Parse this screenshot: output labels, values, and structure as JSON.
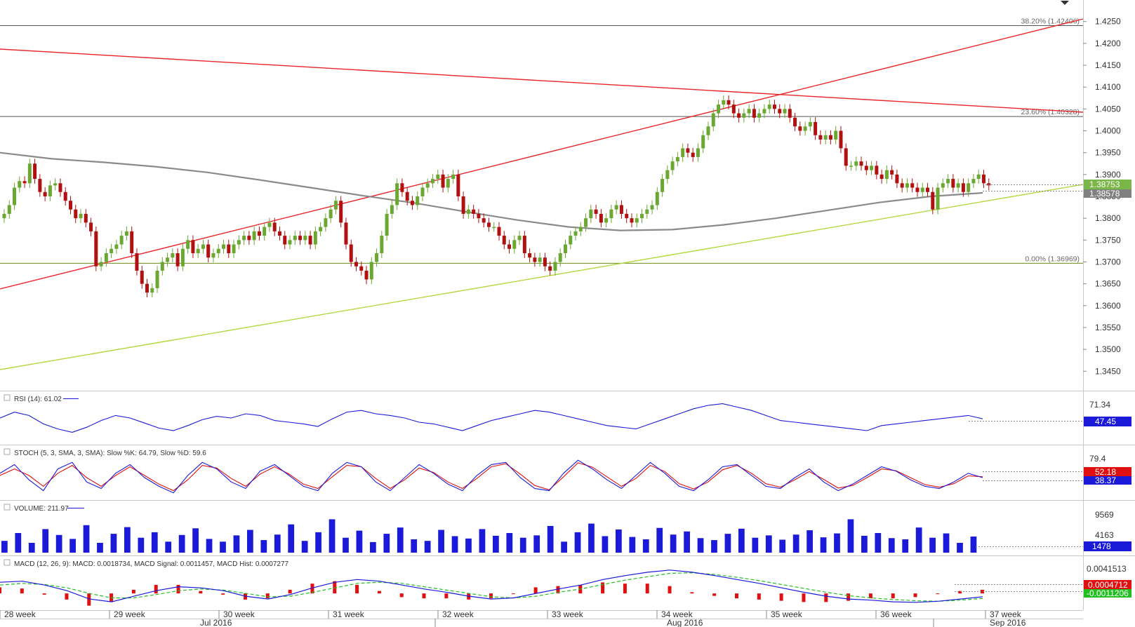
{
  "chart_data": {
    "type": "candlestick",
    "instrument_scale": {
      "ylim": [
        1.342,
        1.428
      ]
    },
    "price_axis": {
      "ticks": [
        "1.4250",
        "1.4200",
        "1.4150",
        "1.4100",
        "1.4050",
        "1.4000",
        "1.3950",
        "1.3900",
        "1.3850",
        "1.3800",
        "1.3750",
        "1.3700",
        "1.3650",
        "1.3600",
        "1.3550",
        "1.3500",
        "1.3450"
      ],
      "last_price_label": "1.38753",
      "ma_label": "1.38578",
      "last_price": 1.38753,
      "ma_value": 1.38578
    },
    "fib_levels": [
      {
        "label": "38.20% (1.42406)",
        "value": 1.42406
      },
      {
        "label": "23.60% (1.40328)",
        "value": 1.40328
      },
      {
        "label": "0.00% (1.36969)",
        "value": 1.36969
      }
    ],
    "time_axis": {
      "week_labels": [
        "28 week",
        "29 week",
        "30 week",
        "31 week",
        "32 week",
        "33 week",
        "34 week",
        "35 week",
        "36 week",
        "37 week"
      ],
      "month_labels": [
        "Jul 2016",
        "Aug 2016",
        "Sep 2016"
      ]
    },
    "candles_close": [
      1.381,
      1.383,
      1.387,
      1.3885,
      1.388,
      1.3925,
      1.389,
      1.386,
      1.385,
      1.3875,
      1.388,
      1.386,
      1.384,
      1.382,
      1.38,
      1.381,
      1.379,
      1.377,
      1.369,
      1.37,
      1.372,
      1.373,
      1.374,
      1.376,
      1.377,
      1.372,
      1.368,
      1.365,
      1.363,
      1.364,
      1.368,
      1.37,
      1.371,
      1.372,
      1.369,
      1.373,
      1.375,
      1.372,
      1.373,
      1.374,
      1.371,
      1.372,
      1.373,
      1.374,
      1.372,
      1.374,
      1.375,
      1.376,
      1.375,
      1.377,
      1.376,
      1.378,
      1.379,
      1.377,
      1.376,
      1.374,
      1.375,
      1.376,
      1.375,
      1.376,
      1.374,
      1.377,
      1.378,
      1.38,
      1.382,
      1.384,
      1.379,
      1.374,
      1.37,
      1.369,
      1.368,
      1.366,
      1.37,
      1.372,
      1.376,
      1.381,
      1.383,
      1.388,
      1.386,
      1.384,
      1.383,
      1.385,
      1.387,
      1.388,
      1.389,
      1.39,
      1.387,
      1.389,
      1.39,
      1.385,
      1.381,
      1.382,
      1.381,
      1.38,
      1.379,
      1.378,
      1.378,
      1.376,
      1.374,
      1.373,
      1.375,
      1.376,
      1.372,
      1.371,
      1.37,
      1.371,
      1.369,
      1.368,
      1.37,
      1.372,
      1.374,
      1.376,
      1.377,
      1.378,
      1.38,
      1.382,
      1.381,
      1.379,
      1.38,
      1.382,
      1.383,
      1.381,
      1.38,
      1.379,
      1.38,
      1.381,
      1.382,
      1.383,
      1.386,
      1.389,
      1.391,
      1.393,
      1.394,
      1.396,
      1.395,
      1.394,
      1.396,
      1.399,
      1.401,
      1.404,
      1.406,
      1.407,
      1.406,
      1.404,
      1.403,
      1.404,
      1.405,
      1.403,
      1.404,
      1.405,
      1.406,
      1.405,
      1.404,
      1.405,
      1.403,
      1.401,
      1.4,
      1.401,
      1.402,
      1.399,
      1.398,
      1.399,
      1.398,
      1.4,
      1.396,
      1.392,
      1.392,
      1.393,
      1.392,
      1.391,
      1.392,
      1.39,
      1.389,
      1.391,
      1.39,
      1.388,
      1.387,
      1.388,
      1.387,
      1.386,
      1.387,
      1.386,
      1.382,
      1.387,
      1.388,
      1.389,
      1.387,
      1.388,
      1.386,
      1.388,
      1.389,
      1.39,
      1.388,
      1.3875
    ],
    "ma200_y": [
      1.395,
      1.3936,
      1.3928,
      1.3918,
      1.3905,
      1.3888,
      1.387,
      1.3852,
      1.3835,
      1.3815,
      1.3796,
      1.378,
      1.3772,
      1.3774,
      1.3785,
      1.38,
      1.3818,
      1.3836,
      1.385,
      1.3858
    ],
    "rsi": {
      "label": "RSI (14): 61.02",
      "axis_labels": [
        "71.34"
      ],
      "current_label": "47.45",
      "values": [
        55,
        62,
        58,
        48,
        42,
        38,
        44,
        52,
        58,
        55,
        49,
        43,
        40,
        46,
        53,
        57,
        55,
        60,
        58,
        52,
        50,
        48,
        45,
        54,
        62,
        64,
        60,
        58,
        55,
        50,
        48,
        44,
        40,
        46,
        52,
        56,
        60,
        64,
        62,
        58,
        54,
        50,
        46,
        44,
        42,
        48,
        54,
        60,
        66,
        70,
        72,
        68,
        64,
        58,
        52,
        50,
        48,
        46,
        44,
        42,
        40,
        46,
        48,
        50,
        52,
        54,
        56,
        58,
        54
      ]
    },
    "stoch": {
      "label": "STOCH (5, 3, SMA, 3, SMA): Slow %K: 64.79, Slow %D: 59.6",
      "axis_labels": [
        "79.4"
      ],
      "k_label": "52.18",
      "d_label": "38.37",
      "k_values": [
        60,
        80,
        45,
        20,
        70,
        85,
        40,
        25,
        60,
        80,
        50,
        30,
        15,
        55,
        85,
        70,
        40,
        25,
        65,
        80,
        55,
        30,
        20,
        60,
        85,
        75,
        40,
        20,
        50,
        80,
        60,
        35,
        20,
        55,
        80,
        85,
        50,
        25,
        20,
        60,
        90,
        70,
        45,
        25,
        55,
        85,
        60,
        30,
        20,
        45,
        75,
        80,
        55,
        30,
        25,
        50,
        70,
        40,
        20,
        35,
        55,
        75,
        65,
        45,
        30,
        25,
        40,
        60,
        50
      ],
      "d_values": [
        55,
        70,
        55,
        30,
        60,
        78,
        50,
        30,
        55,
        75,
        55,
        35,
        20,
        45,
        78,
        72,
        48,
        30,
        58,
        75,
        58,
        35,
        25,
        52,
        78,
        75,
        48,
        25,
        45,
        72,
        62,
        40,
        25,
        48,
        75,
        82,
        58,
        32,
        22,
        52,
        84,
        74,
        52,
        30,
        48,
        78,
        64,
        36,
        24,
        40,
        68,
        78,
        60,
        36,
        28,
        45,
        64,
        46,
        26,
        32,
        50,
        70,
        66,
        50,
        34,
        28,
        36,
        54,
        52
      ]
    },
    "volume": {
      "label": "VOLUME: 211.97",
      "axis_labels": [
        "9569",
        "4163"
      ],
      "current_label": "1478",
      "values": [
        3000,
        5000,
        2500,
        6000,
        4500,
        3500,
        7000,
        2500,
        4800,
        6500,
        3800,
        5200,
        2800,
        4500,
        6200,
        3500,
        2800,
        4400,
        5800,
        3200,
        4600,
        7200,
        3000,
        5200,
        8500,
        3800,
        5600,
        2700,
        4800,
        6400,
        3400,
        3000,
        5800,
        4200,
        3600,
        6000,
        4300,
        5000,
        3800,
        4400,
        6800,
        2800,
        5200,
        7400,
        4200,
        5900,
        4000,
        3400,
        6300,
        4600,
        5400,
        3700,
        3200,
        4800,
        6100,
        3800,
        4400,
        3300,
        4600,
        5700,
        3900,
        4900,
        8500,
        4300,
        5000,
        3700,
        3400,
        6400,
        3800,
        4900,
        2500,
        4100
      ]
    },
    "macd": {
      "label": "MACD (12, 26, 9): MACD: 0.0018734, MACD Signal: 0.0011457, MACD Hist: 0.0007277",
      "axis_labels": [
        "0.0041513"
      ],
      "hist_label": "0.0004712",
      "signal_label": "-0.0011206",
      "line_values": [
        2.0,
        2.2,
        1.5,
        0.5,
        -1.0,
        -1.5,
        -0.5,
        0.5,
        1.2,
        1.0,
        0.5,
        -0.5,
        -1.0,
        -0.2,
        1.0,
        2.0,
        2.5,
        2.2,
        1.5,
        0.8,
        0.2,
        -0.5,
        -1.0,
        -0.8,
        0.0,
        0.8,
        1.5,
        2.5,
        3.2,
        3.8,
        4.2,
        3.8,
        3.2,
        2.5,
        1.8,
        1.0,
        0.2,
        -0.5,
        -1.0,
        -1.2,
        -1.5,
        -1.6,
        -1.4,
        -1.0,
        -0.6
      ],
      "signal_values": [
        1.5,
        1.8,
        1.6,
        1.0,
        0.0,
        -0.8,
        -0.8,
        -0.2,
        0.5,
        0.8,
        0.6,
        0.0,
        -0.6,
        -0.5,
        0.2,
        1.0,
        1.8,
        2.0,
        1.8,
        1.2,
        0.6,
        0.0,
        -0.6,
        -0.8,
        -0.5,
        0.2,
        0.8,
        1.6,
        2.4,
        3.0,
        3.6,
        3.7,
        3.4,
        2.9,
        2.3,
        1.6,
        0.9,
        0.2,
        -0.4,
        -0.8,
        -1.1,
        -1.3,
        -1.4,
        -1.2,
        -0.9
      ]
    },
    "colors": {
      "bull": "#6aa832",
      "bear": "#b01010",
      "trend_red": "#e8262a",
      "trend_green": "#b4d840",
      "ma": "#8a8a8a",
      "indicator_blue": "#1a1ad8",
      "indicator_red": "#e01010",
      "macd_green": "#20c020"
    }
  }
}
